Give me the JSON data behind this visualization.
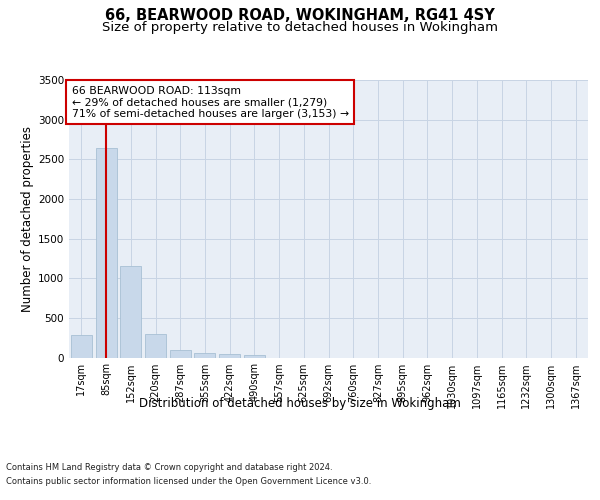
{
  "title": "66, BEARWOOD ROAD, WOKINGHAM, RG41 4SY",
  "subtitle": "Size of property relative to detached houses in Wokingham",
  "xlabel": "Distribution of detached houses by size in Wokingham",
  "ylabel": "Number of detached properties",
  "footer_line1": "Contains HM Land Registry data © Crown copyright and database right 2024.",
  "footer_line2": "Contains public sector information licensed under the Open Government Licence v3.0.",
  "bar_labels": [
    "17sqm",
    "85sqm",
    "152sqm",
    "220sqm",
    "287sqm",
    "355sqm",
    "422sqm",
    "490sqm",
    "557sqm",
    "625sqm",
    "692sqm",
    "760sqm",
    "827sqm",
    "895sqm",
    "962sqm",
    "1030sqm",
    "1097sqm",
    "1165sqm",
    "1232sqm",
    "1300sqm",
    "1367sqm"
  ],
  "bar_values": [
    290,
    2640,
    1150,
    300,
    90,
    55,
    40,
    30,
    0,
    0,
    0,
    0,
    0,
    0,
    0,
    0,
    0,
    0,
    0,
    0,
    0
  ],
  "bar_color": "#c8d8ea",
  "bar_edgecolor": "#a8c0d4",
  "property_line_x": 1.0,
  "property_line_color": "#cc0000",
  "annotation_text": "66 BEARWOOD ROAD: 113sqm\n← 29% of detached houses are smaller (1,279)\n71% of semi-detached houses are larger (3,153) →",
  "annotation_box_facecolor": "#ffffff",
  "annotation_box_edgecolor": "#cc0000",
  "ylim": [
    0,
    3500
  ],
  "yticks": [
    0,
    500,
    1000,
    1500,
    2000,
    2500,
    3000,
    3500
  ],
  "grid_color": "#c8d4e4",
  "bg_color": "#e8eef6",
  "title_fontsize": 10.5,
  "subtitle_fontsize": 9.5,
  "ylabel_fontsize": 8.5,
  "xlabel_fontsize": 8.5,
  "tick_fontsize": 7,
  "annotation_fontsize": 7.8,
  "footer_fontsize": 6.0
}
